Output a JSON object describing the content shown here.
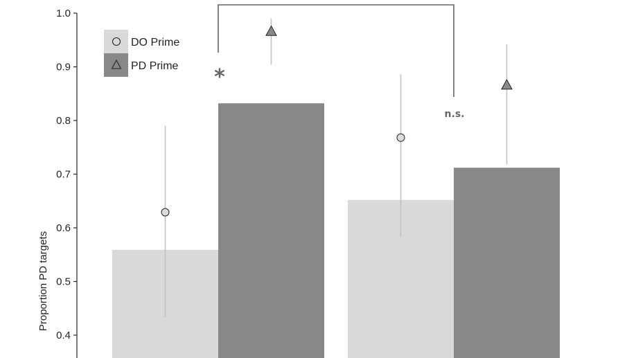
{
  "colors": {
    "do_bar": "#d9d9d9",
    "pd_bar": "#888888",
    "errorbar": "#c2c2c2",
    "axis": "#222222",
    "annotation": "#666666",
    "bracket": "#666666",
    "marker_do_fill": "#dcdcdc",
    "marker_pd_fill": "#8a8a8a"
  },
  "chart_data": {
    "type": "bar",
    "ylabel": "Proportion PD targets",
    "ylim": [
      0.36,
      1.0
    ],
    "yticks": [
      "0.4",
      "0.5",
      "0.6",
      "0.7",
      "0.8",
      "0.9",
      "1.0"
    ],
    "groups": 2,
    "series": [
      {
        "name": "DO Prime",
        "marker": "circle",
        "values": [
          0.559,
          0.652
        ]
      },
      {
        "name": "PD Prime",
        "marker": "triangle",
        "values": [
          0.832,
          0.712
        ]
      }
    ],
    "points": [
      {
        "series": "DO Prime",
        "group": 0,
        "y": 0.629,
        "low": 0.433,
        "high": 0.79
      },
      {
        "series": "PD Prime",
        "group": 0,
        "y": 0.966,
        "low": 0.904,
        "high": 0.99
      },
      {
        "series": "DO Prime",
        "group": 1,
        "y": 0.768,
        "low": 0.583,
        "high": 0.886
      },
      {
        "series": "PD Prime",
        "group": 1,
        "y": 0.866,
        "low": 0.718,
        "high": 0.942
      }
    ],
    "legend_position": "top-left",
    "annotations": [
      {
        "text": "*",
        "group": 0
      },
      {
        "text": "n.s.",
        "group": 1
      }
    ]
  }
}
